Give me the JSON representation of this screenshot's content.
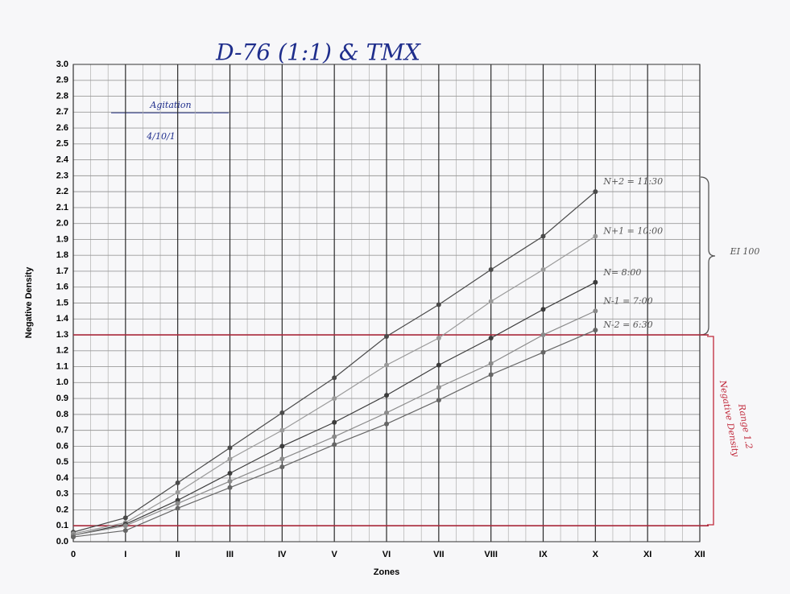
{
  "chart_data": {
    "type": "line",
    "title": "D-76 (1:1) & TMX",
    "x_label": "Zones",
    "y_label": "Negative Density",
    "x": [
      0,
      1,
      2,
      3,
      4,
      5,
      6,
      7,
      8,
      9,
      10
    ],
    "xlim": [
      0,
      12
    ],
    "xticks": [
      0,
      {
        "value": 1,
        "label": "I"
      },
      {
        "value": 2,
        "label": "II"
      },
      {
        "value": 3,
        "label": "III"
      },
      {
        "value": 4,
        "label": "IV"
      },
      {
        "value": 5,
        "label": "V"
      },
      {
        "value": 6,
        "label": "VI"
      },
      {
        "value": 7,
        "label": "VII"
      },
      {
        "value": 8,
        "label": "VIII"
      },
      {
        "value": 9,
        "label": "IX"
      },
      {
        "value": 10,
        "label": "X"
      },
      {
        "value": 11,
        "label": "XI"
      },
      {
        "value": 12,
        "label": "XII"
      }
    ],
    "ylim": [
      0,
      3
    ],
    "yticks": [
      {
        "value": 0,
        "label": "0.0"
      },
      0.1,
      0.2,
      0.3,
      0.4,
      0.5,
      0.6,
      0.7,
      0.8,
      0.9,
      {
        "value": 1,
        "label": "1.0"
      },
      1.1,
      1.2,
      1.3,
      1.4,
      1.5,
      1.6,
      1.7,
      1.8,
      1.9,
      {
        "value": 2,
        "label": "2.0"
      },
      2.1,
      2.2,
      2.3,
      2.4,
      2.5,
      2.6,
      2.7,
      2.8,
      2.9,
      {
        "value": 3,
        "label": "3.0"
      }
    ],
    "grid": true,
    "series": [
      {
        "name": "N+2 = 11:30",
        "color": "#4a4a4a",
        "values": [
          0.06,
          0.15,
          0.37,
          0.59,
          0.81,
          1.03,
          1.29,
          1.49,
          1.71,
          1.92,
          2.2
        ]
      },
      {
        "name": "N+1 = 10:00",
        "color": "#9a9a9a",
        "values": [
          0.05,
          0.12,
          0.31,
          0.52,
          0.7,
          0.9,
          1.11,
          1.28,
          1.51,
          1.71,
          1.92
        ]
      },
      {
        "name": "N= 8:00",
        "color": "#3c3c3c",
        "values": [
          0.04,
          0.11,
          0.26,
          0.43,
          0.6,
          0.75,
          0.92,
          1.11,
          1.28,
          1.46,
          1.63
        ]
      },
      {
        "name": "N-1 = 7:00",
        "color": "#8a8a8a",
        "values": [
          0.04,
          0.1,
          0.24,
          0.38,
          0.52,
          0.66,
          0.81,
          0.97,
          1.12,
          1.3,
          1.45
        ]
      },
      {
        "name": "N-2 = 6:30",
        "color": "#666666",
        "values": [
          0.03,
          0.07,
          0.21,
          0.34,
          0.47,
          0.61,
          0.74,
          0.89,
          1.05,
          1.19,
          1.33
        ]
      }
    ],
    "reference_lines": [
      {
        "value": 1.3,
        "color": "#a8283a"
      },
      {
        "value": 0.1,
        "color": "#a8283a"
      }
    ],
    "annotations": [
      "Agitation",
      "4/10/1",
      "EI 100",
      "Negative Density",
      "Range 1.2"
    ]
  }
}
